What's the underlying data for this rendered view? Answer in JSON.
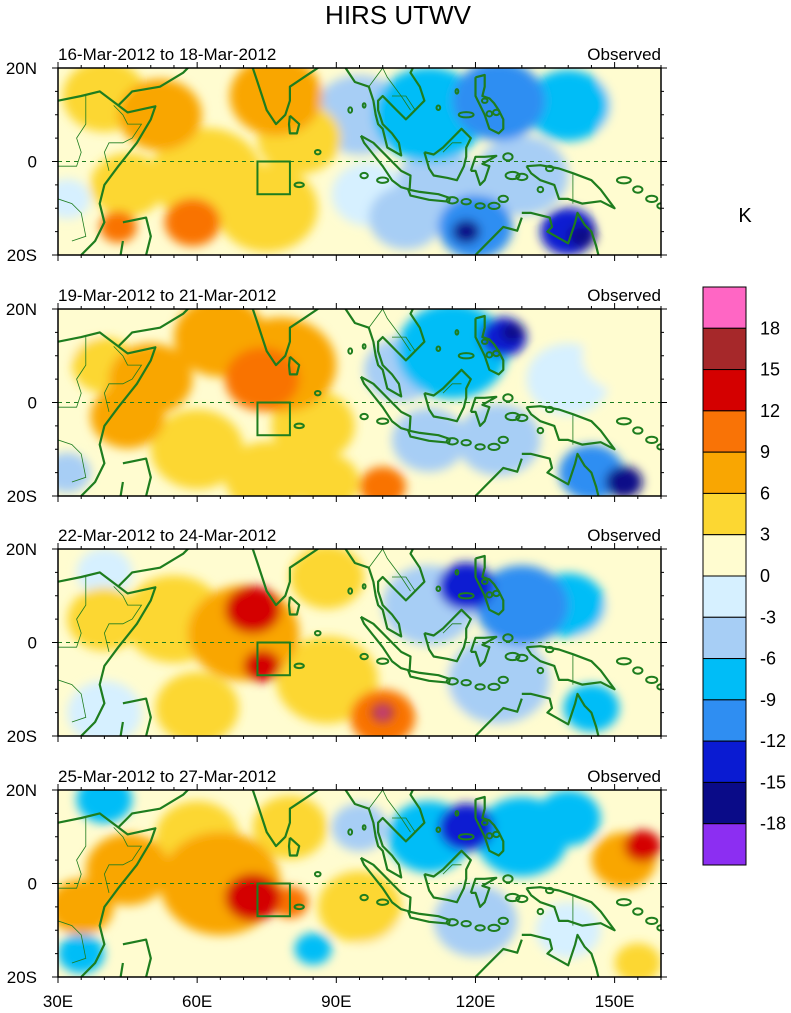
{
  "chart_data": {
    "type": "heatmap",
    "title": "HIRS UTWV",
    "units_label": "K",
    "x_axis": {
      "range": [
        30,
        160
      ],
      "tick_values": [
        30,
        60,
        90,
        120,
        150
      ],
      "tick_labels": [
        "30E",
        "60E",
        "90E",
        "120E",
        "150E"
      ]
    },
    "y_axis": {
      "range": [
        -20,
        20
      ],
      "tick_values": [
        20,
        0,
        -20
      ],
      "tick_labels": [
        "20N",
        "0",
        "20S"
      ]
    },
    "grid": false,
    "equator_line": "dashed",
    "colorbar": {
      "position": "right",
      "tick_labels": [
        "18",
        "15",
        "12",
        "9",
        "6",
        "3",
        "0",
        "-3",
        "-6",
        "-9",
        "-12",
        "-15",
        "-18"
      ],
      "colors": [
        "#ff66c4",
        "#a6282a",
        "#d40000",
        "#f97306",
        "#f9a602",
        "#fcd732",
        "#fffcd0",
        "#d6f0ff",
        "#a7cef5",
        "#00bdf7",
        "#2f8ef2",
        "#0a1bd2",
        "#0a0b88",
        "#8c2ef2"
      ]
    },
    "box_region": {
      "lon": [
        73,
        80
      ],
      "lat": [
        -7,
        0
      ]
    },
    "panels": [
      {
        "dates": "16-Mar-2012 to 18-Mar-2012",
        "label": "Observed",
        "anomalies": [
          {
            "lon": 40,
            "lat": 14,
            "value": 5,
            "r": 9
          },
          {
            "lon": 52,
            "lat": 10,
            "value": 7,
            "r": 9
          },
          {
            "lon": 45,
            "lat": -5,
            "value": 6,
            "r": 8
          },
          {
            "lon": 43,
            "lat": -14,
            "value": 11,
            "r": 4
          },
          {
            "lon": 59,
            "lat": -13,
            "value": 11,
            "r": 6
          },
          {
            "lon": 62,
            "lat": -3,
            "value": 4,
            "r": 12
          },
          {
            "lon": 75,
            "lat": -10,
            "value": 5,
            "r": 11
          },
          {
            "lon": 77,
            "lat": 14,
            "value": 7,
            "r": 10
          },
          {
            "lon": 82,
            "lat": 5,
            "value": 4,
            "r": 9
          },
          {
            "lon": 95,
            "lat": 10,
            "value": -3,
            "r": 10
          },
          {
            "lon": 110,
            "lat": 10,
            "value": -6,
            "r": 12
          },
          {
            "lon": 125,
            "lat": 13,
            "value": -9,
            "r": 10
          },
          {
            "lon": 140,
            "lat": 12,
            "value": -7,
            "r": 9
          },
          {
            "lon": 152,
            "lat": 12,
            "value": 3,
            "r": 8
          },
          {
            "lon": 112,
            "lat": -5,
            "value": -4,
            "r": 9
          },
          {
            "lon": 130,
            "lat": -3,
            "value": -3,
            "r": 10
          },
          {
            "lon": 120,
            "lat": -14,
            "value": -11,
            "r": 8
          },
          {
            "lon": 118,
            "lat": -15,
            "value": -16,
            "r": 3
          },
          {
            "lon": 140,
            "lat": -15,
            "value": -13,
            "r": 6
          },
          {
            "lon": 143,
            "lat": -16,
            "value": -17,
            "r": 3
          },
          {
            "lon": 105,
            "lat": -12,
            "value": -5,
            "r": 8
          },
          {
            "lon": 97,
            "lat": -7,
            "value": -2,
            "r": 8
          },
          {
            "lon": 155,
            "lat": -10,
            "value": 2,
            "r": 7
          },
          {
            "lon": 32,
            "lat": -8,
            "value": -2,
            "r": 5
          }
        ]
      },
      {
        "dates": "19-Mar-2012 to 21-Mar-2012",
        "label": "Observed",
        "anomalies": [
          {
            "lon": 74,
            "lat": 5,
            "value": 12,
            "r": 8
          },
          {
            "lon": 78,
            "lat": 8,
            "value": 9,
            "r": 12
          },
          {
            "lon": 65,
            "lat": 14,
            "value": 8,
            "r": 10
          },
          {
            "lon": 50,
            "lat": 5,
            "value": 8,
            "r": 9
          },
          {
            "lon": 40,
            "lat": 8,
            "value": 6,
            "r": 7
          },
          {
            "lon": 45,
            "lat": -3,
            "value": 7,
            "r": 8
          },
          {
            "lon": 60,
            "lat": -10,
            "value": 5,
            "r": 10
          },
          {
            "lon": 85,
            "lat": -5,
            "value": 6,
            "r": 9
          },
          {
            "lon": 100,
            "lat": -18,
            "value": 11,
            "r": 5
          },
          {
            "lon": 88,
            "lat": -17,
            "value": 6,
            "r": 7
          },
          {
            "lon": 75,
            "lat": -16,
            "value": 4,
            "r": 9
          },
          {
            "lon": 115,
            "lat": 11,
            "value": -8,
            "r": 12
          },
          {
            "lon": 126,
            "lat": 14,
            "value": -14,
            "r": 5
          },
          {
            "lon": 128,
            "lat": 15,
            "value": -16,
            "r": 2.5
          },
          {
            "lon": 104,
            "lat": 7,
            "value": -4,
            "r": 8
          },
          {
            "lon": 140,
            "lat": 5,
            "value": -2,
            "r": 9
          },
          {
            "lon": 152,
            "lat": 10,
            "value": 3,
            "r": 9
          },
          {
            "lon": 125,
            "lat": -8,
            "value": -5,
            "r": 9
          },
          {
            "lon": 145,
            "lat": -15,
            "value": -11,
            "r": 7
          },
          {
            "lon": 152,
            "lat": -17,
            "value": -15,
            "r": 4
          },
          {
            "lon": 110,
            "lat": -8,
            "value": -3,
            "r": 8
          },
          {
            "lon": 32,
            "lat": -15,
            "value": -3,
            "r": 5
          },
          {
            "lon": 33,
            "lat": 15,
            "value": 2,
            "r": 6
          }
        ]
      },
      {
        "dates": "22-Mar-2012 to 24-Mar-2012",
        "label": "Observed",
        "anomalies": [
          {
            "lon": 72,
            "lat": 7,
            "value": 13,
            "r": 6
          },
          {
            "lon": 74,
            "lat": -5,
            "value": 13,
            "r": 4
          },
          {
            "lon": 70,
            "lat": 2,
            "value": 9,
            "r": 12
          },
          {
            "lon": 55,
            "lat": 5,
            "value": 6,
            "r": 11
          },
          {
            "lon": 40,
            "lat": 5,
            "value": 6,
            "r": 8
          },
          {
            "lon": 88,
            "lat": -8,
            "value": 6,
            "r": 11
          },
          {
            "lon": 100,
            "lat": -16,
            "value": 12,
            "r": 7
          },
          {
            "lon": 100,
            "lat": -15,
            "value": 16,
            "r": 2.5
          },
          {
            "lon": 100,
            "lat": -15,
            "value": 19,
            "r": 0.8
          },
          {
            "lon": 88,
            "lat": 14,
            "value": 4,
            "r": 8
          },
          {
            "lon": 60,
            "lat": -14,
            "value": 4,
            "r": 9
          },
          {
            "lon": 40,
            "lat": -15,
            "value": -2,
            "r": 8
          },
          {
            "lon": 40,
            "lat": 15,
            "value": -2,
            "r": 6
          },
          {
            "lon": 118,
            "lat": 12,
            "value": -12,
            "r": 6
          },
          {
            "lon": 130,
            "lat": 8,
            "value": -9,
            "r": 10
          },
          {
            "lon": 140,
            "lat": 8,
            "value": -8,
            "r": 8
          },
          {
            "lon": 110,
            "lat": 8,
            "value": -5,
            "r": 10
          },
          {
            "lon": 150,
            "lat": 2,
            "value": 2,
            "r": 8
          },
          {
            "lon": 125,
            "lat": -8,
            "value": -3,
            "r": 11
          },
          {
            "lon": 145,
            "lat": -14,
            "value": -7,
            "r": 6
          },
          {
            "lon": 115,
            "lat": -10,
            "value": 1,
            "r": 7
          }
        ]
      },
      {
        "dates": "25-Mar-2012 to 27-Mar-2012",
        "label": "Observed",
        "anomalies": [
          {
            "lon": 72,
            "lat": -3,
            "value": 13,
            "r": 6
          },
          {
            "lon": 80,
            "lat": -4,
            "value": 12,
            "r": 4
          },
          {
            "lon": 65,
            "lat": 0,
            "value": 9,
            "r": 13
          },
          {
            "lon": 45,
            "lat": 3,
            "value": 8,
            "r": 9
          },
          {
            "lon": 35,
            "lat": -5,
            "value": 7,
            "r": 7
          },
          {
            "lon": 60,
            "lat": 10,
            "value": 5,
            "r": 9
          },
          {
            "lon": 80,
            "lat": 12,
            "value": 5,
            "r": 8
          },
          {
            "lon": 95,
            "lat": -5,
            "value": 5,
            "r": 9
          },
          {
            "lon": 100,
            "lat": -12,
            "value": 2,
            "r": 6
          },
          {
            "lon": 85,
            "lat": -14,
            "value": -7,
            "r": 4
          },
          {
            "lon": 40,
            "lat": 18,
            "value": -6,
            "r": 6
          },
          {
            "lon": 35,
            "lat": -15,
            "value": -6,
            "r": 5
          },
          {
            "lon": 118,
            "lat": 12,
            "value": -13,
            "r": 6
          },
          {
            "lon": 130,
            "lat": 10,
            "value": -8,
            "r": 10
          },
          {
            "lon": 110,
            "lat": 10,
            "value": -6,
            "r": 9
          },
          {
            "lon": 140,
            "lat": 14,
            "value": -6,
            "r": 7
          },
          {
            "lon": 156,
            "lat": 8,
            "value": 13,
            "r": 4
          },
          {
            "lon": 152,
            "lat": 5,
            "value": 8,
            "r": 7
          },
          {
            "lon": 120,
            "lat": -8,
            "value": -3,
            "r": 9
          },
          {
            "lon": 140,
            "lat": -10,
            "value": -2,
            "r": 7
          },
          {
            "lon": 95,
            "lat": 12,
            "value": -3,
            "r": 6
          },
          {
            "lon": 155,
            "lat": -17,
            "value": 4,
            "r": 5
          }
        ]
      }
    ]
  }
}
